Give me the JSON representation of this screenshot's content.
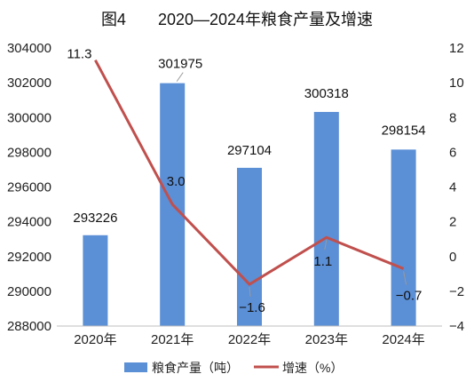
{
  "chart_data": {
    "type": "bar",
    "title": "图4　　2020—2024年粮食产量及增速",
    "categories": [
      "2020年",
      "2021年",
      "2022年",
      "2023年",
      "2024年"
    ],
    "series": [
      {
        "name": "粮食产量（吨）",
        "type": "bar",
        "axis": "left",
        "color": "#5b8fd6",
        "values": [
          293226,
          301975,
          297104,
          300318,
          298154
        ],
        "labels": [
          "293226",
          "301975",
          "297104",
          "300318",
          "298154"
        ]
      },
      {
        "name": "增速（%）",
        "type": "line",
        "axis": "right",
        "color": "#c0504d",
        "values": [
          11.3,
          3.0,
          -1.6,
          1.1,
          -0.7
        ],
        "labels": [
          "11.3",
          "3.0",
          "−1.6",
          "1.1",
          "−0.7"
        ]
      }
    ],
    "left_axis": {
      "min": 288000,
      "max": 304000,
      "ticks": [
        "288000",
        "290000",
        "292000",
        "294000",
        "296000",
        "298000",
        "300000",
        "302000",
        "304000"
      ]
    },
    "right_axis": {
      "min": -4,
      "max": 12,
      "ticks": [
        "−4",
        "−2",
        "0",
        "2",
        "4",
        "6",
        "8",
        "10",
        "12"
      ]
    },
    "grid": false,
    "legend": "bottom"
  }
}
